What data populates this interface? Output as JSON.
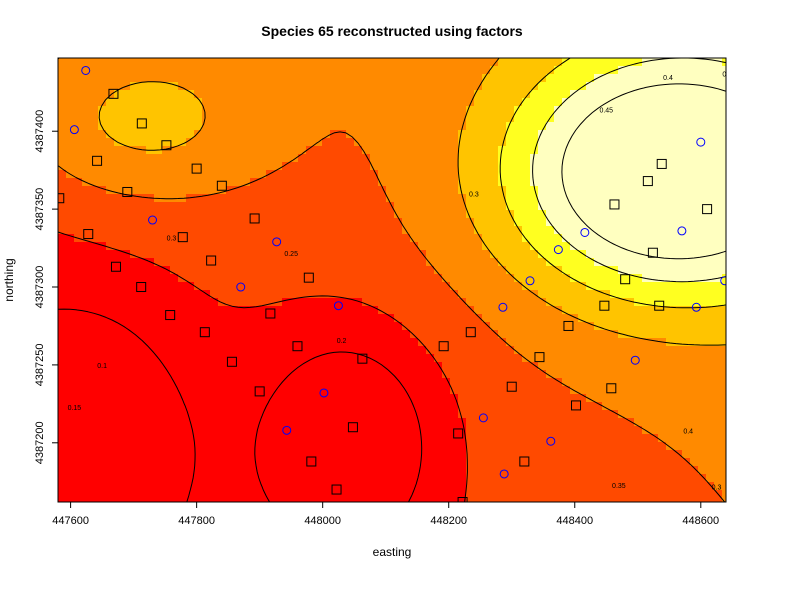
{
  "chart_data": {
    "type": "heatmap",
    "title": "Species 65 reconstructed using factors",
    "xlabel": "easting",
    "ylabel": "northing",
    "xlim": [
      447580,
      448640
    ],
    "ylim": [
      4387162,
      4387447
    ],
    "xticks": [
      447600,
      447800,
      448000,
      448200,
      448400,
      448600
    ],
    "yticks": [
      4387200,
      4387250,
      4387300,
      4387350,
      4387400
    ],
    "xtick_labels": [
      "447600",
      "447800",
      "448000",
      "448200",
      "448400",
      "448600"
    ],
    "ytick_labels": [
      "4387200",
      "4387250",
      "4387300",
      "4387350",
      "4387400"
    ],
    "color_scale": [
      "#ff0000",
      "#ff4a00",
      "#ff8a00",
      "#ffc400",
      "#ffff20",
      "#ffffc0"
    ],
    "contour_levels": [
      0.15,
      0.2,
      0.25,
      0.3,
      0.35,
      0.4,
      0.45
    ],
    "contour_labels": [
      {
        "text": "0.15",
        "x": 447606,
        "y": 4387221
      },
      {
        "text": "0.2",
        "x": 448030,
        "y": 4387264
      },
      {
        "text": "0.25",
        "x": 447950,
        "y": 4387320
      },
      {
        "text": "0.3",
        "x": 447760,
        "y": 4387330
      },
      {
        "text": "0.3",
        "x": 448240,
        "y": 4387358
      },
      {
        "text": "0.35",
        "x": 448470,
        "y": 4387171
      },
      {
        "text": "0.4",
        "x": 448580,
        "y": 4387206
      },
      {
        "text": "0.45",
        "x": 448450,
        "y": 4387412
      },
      {
        "text": "0.4",
        "x": 448548,
        "y": 4387433
      },
      {
        "text": "0.35",
        "x": 448645,
        "y": 4387435
      },
      {
        "text": "0.3",
        "x": 448625,
        "y": 4387170
      },
      {
        "text": "0.1",
        "x": 447650,
        "y": 4387248
      }
    ],
    "square_points": [
      [
        447668,
        4387424
      ],
      [
        447713,
        4387405
      ],
      [
        447752,
        4387391
      ],
      [
        447642,
        4387381
      ],
      [
        447800,
        4387376
      ],
      [
        447840,
        4387365
      ],
      [
        447690,
        4387361
      ],
      [
        447582,
        4387357
      ],
      [
        447892,
        4387344
      ],
      [
        447628,
        4387334
      ],
      [
        447778,
        4387332
      ],
      [
        447672,
        4387313
      ],
      [
        447823,
        4387317
      ],
      [
        447978,
        4387306
      ],
      [
        447712,
        4387300
      ],
      [
        447758,
        4387282
      ],
      [
        447917,
        4387283
      ],
      [
        447813,
        4387271
      ],
      [
        447960,
        4387262
      ],
      [
        447856,
        4387252
      ],
      [
        448063,
        4387254
      ],
      [
        448192,
        4387262
      ],
      [
        448235,
        4387271
      ],
      [
        448344,
        4387255
      ],
      [
        448390,
        4387275
      ],
      [
        448458,
        4387235
      ],
      [
        448300,
        4387236
      ],
      [
        447900,
        4387233
      ],
      [
        448048,
        4387210
      ],
      [
        448215,
        4387206
      ],
      [
        447982,
        4387188
      ],
      [
        448320,
        4387188
      ],
      [
        448022,
        4387170
      ],
      [
        448222,
        4387162
      ],
      [
        448402,
        4387224
      ],
      [
        448538,
        4387379
      ],
      [
        448516,
        4387368
      ],
      [
        448463,
        4387353
      ],
      [
        448610,
        4387350
      ],
      [
        448524,
        4387322
      ],
      [
        448480,
        4387305
      ],
      [
        448534,
        4387288
      ],
      [
        448447,
        4387288
      ]
    ],
    "circle_points": [
      [
        447624,
        4387439
      ],
      [
        447606,
        4387401
      ],
      [
        447730,
        4387343
      ],
      [
        447927,
        4387329
      ],
      [
        447870,
        4387300
      ],
      [
        448025,
        4387288
      ],
      [
        448002,
        4387232
      ],
      [
        447943,
        4387208
      ],
      [
        448329,
        4387304
      ],
      [
        448286,
        4387287
      ],
      [
        448374,
        4387324
      ],
      [
        448416,
        4387335
      ],
      [
        448570,
        4387336
      ],
      [
        448600,
        4387393
      ],
      [
        448638,
        4387304
      ],
      [
        448593,
        4387287
      ],
      [
        448496,
        4387253
      ],
      [
        448255,
        4387216
      ],
      [
        448362,
        4387201
      ],
      [
        448288,
        4387180
      ]
    ]
  }
}
